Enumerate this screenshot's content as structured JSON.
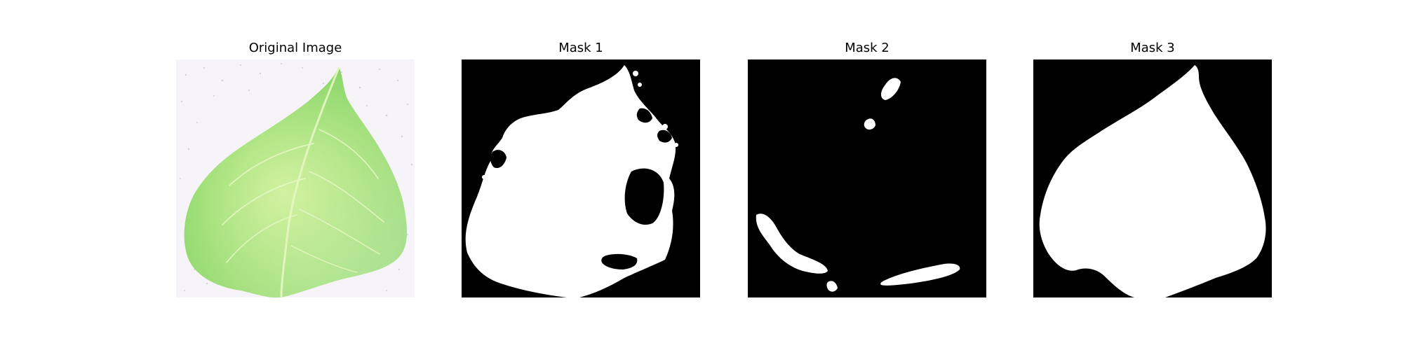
{
  "panels": [
    {
      "title": "Original Image"
    },
    {
      "title": "Mask 1"
    },
    {
      "title": "Mask 2"
    },
    {
      "title": "Mask 3"
    }
  ],
  "colors": {
    "background": "#ffffff",
    "mask_background": "#000000",
    "mask_foreground": "#ffffff",
    "leaf_green": "#8fdc6a",
    "leaf_light": "#d9f2a8",
    "paper_speckle": "#b9a9c9"
  }
}
